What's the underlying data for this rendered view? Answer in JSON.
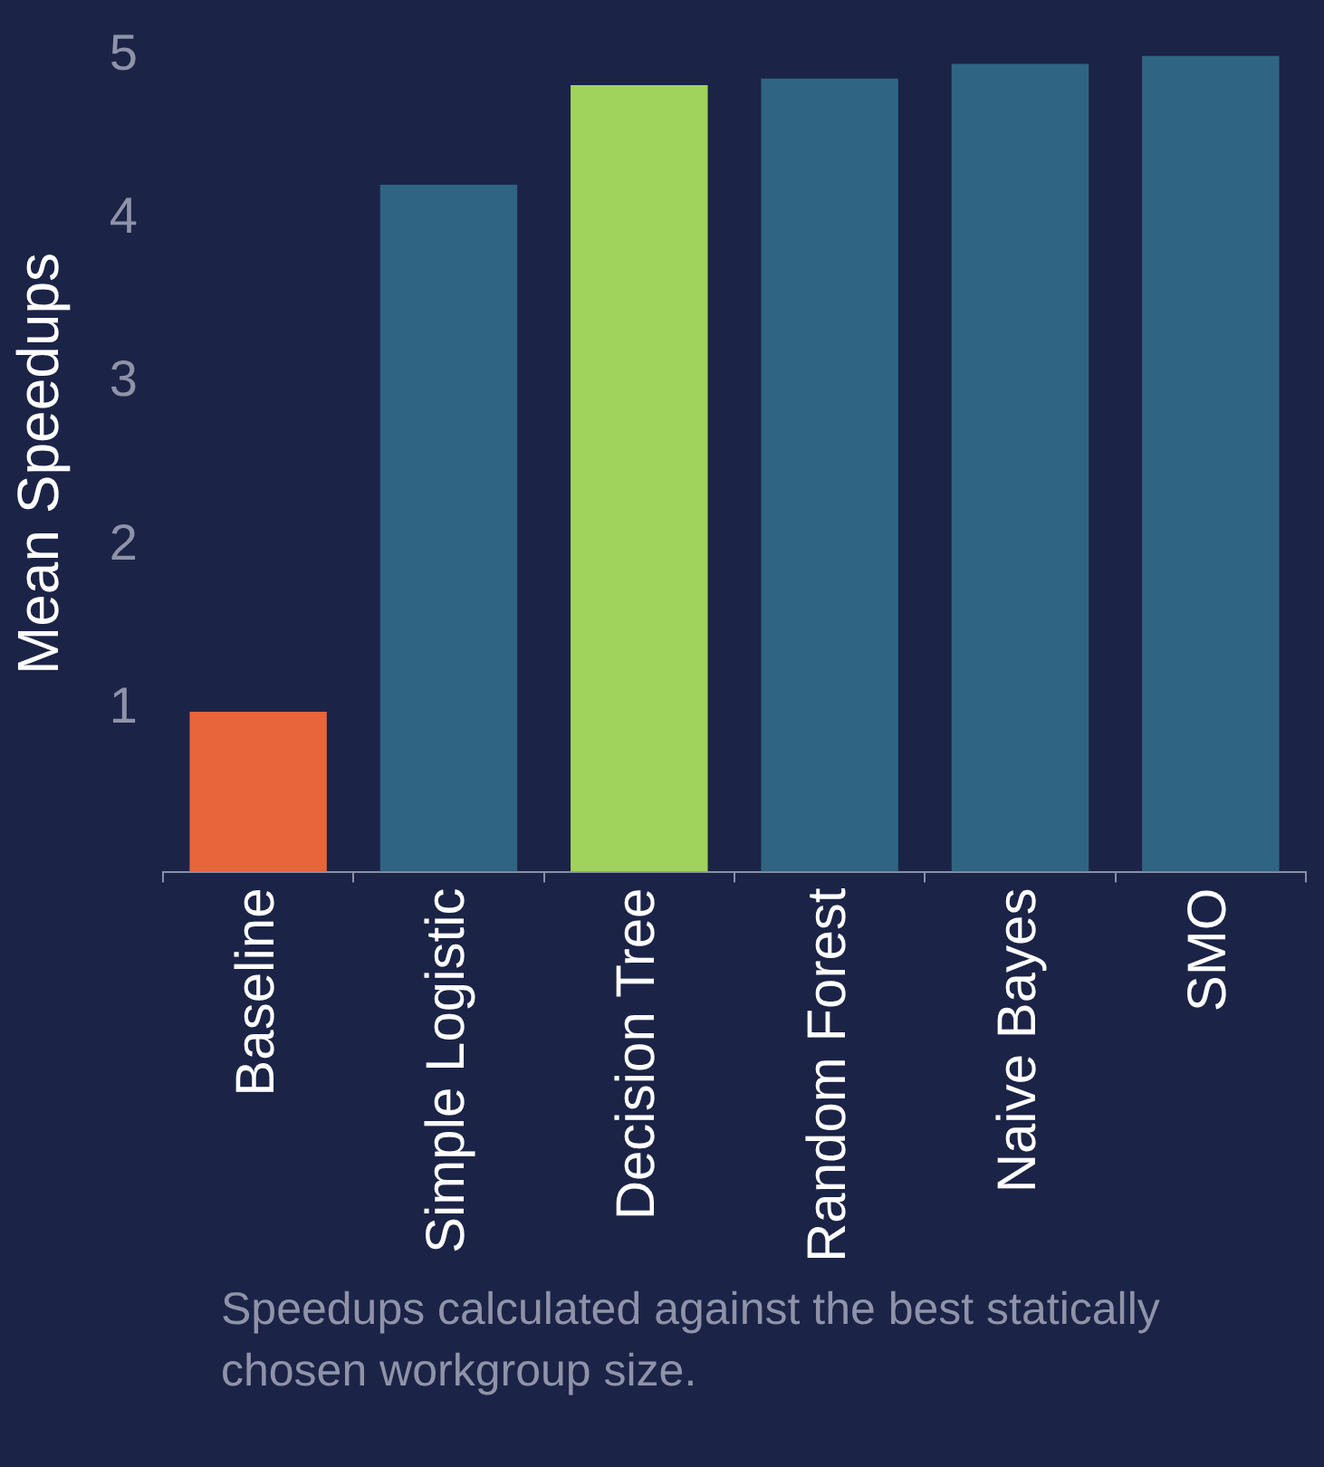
{
  "chart_data": {
    "type": "bar",
    "ylabel": "Mean Speedups",
    "categories": [
      "Baseline",
      "Simple Logistic",
      "Decision Tree",
      "Random Forest",
      "Naive Bayes",
      "SMO"
    ],
    "values": [
      0.98,
      4.21,
      4.82,
      4.86,
      4.95,
      5.0
    ],
    "colors": [
      "#e8643a",
      "#2f6482",
      "#9fd35c",
      "#2f6482",
      "#2f6482",
      "#2f6482"
    ],
    "ylim": [
      0,
      5
    ],
    "yticks": [
      1,
      2,
      3,
      4,
      5
    ],
    "grid": false,
    "legend": false,
    "annotations": [
      "Speedups calculated against the best statically chosen workgroup size."
    ]
  }
}
